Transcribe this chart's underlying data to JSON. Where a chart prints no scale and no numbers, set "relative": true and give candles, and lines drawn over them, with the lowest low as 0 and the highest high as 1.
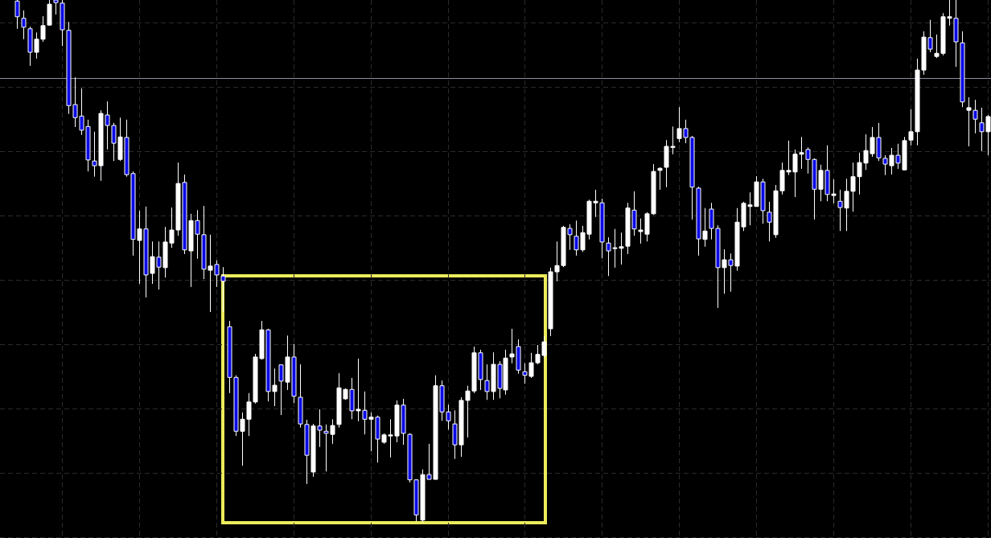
{
  "chart_data": {
    "type": "candlestick",
    "relative": true,
    "grid": true,
    "categories": [
      null,
      null,
      null,
      null,
      null,
      null,
      null,
      null,
      null,
      null,
      null,
      null,
      null,
      null,
      null,
      null,
      null,
      null,
      null,
      null,
      null,
      null,
      null,
      null,
      null,
      null,
      null,
      null,
      null,
      null,
      null,
      null,
      null,
      null,
      null,
      null,
      null,
      null,
      null,
      null,
      null,
      null,
      null,
      null,
      null,
      null,
      null,
      null,
      null,
      null,
      null,
      null,
      null,
      null,
      null,
      null,
      null,
      null,
      null,
      null,
      null,
      null,
      null,
      null,
      null,
      null,
      null,
      null,
      null,
      null,
      null,
      null,
      null,
      null,
      null,
      null,
      null,
      null,
      null,
      null,
      null,
      null,
      null,
      null,
      null,
      null,
      null,
      null,
      null,
      null,
      null,
      null,
      null,
      null,
      null,
      null,
      null,
      null,
      null,
      null,
      null,
      null,
      null,
      null,
      null,
      null,
      null,
      null,
      null,
      null,
      null,
      null,
      null,
      null,
      null,
      null,
      null,
      null,
      null,
      null,
      null,
      null,
      null,
      null,
      null,
      null,
      null,
      null,
      null,
      null,
      null,
      null,
      null,
      null,
      null,
      null,
      null,
      null,
      null,
      null,
      null,
      null,
      null,
      null,
      null,
      null,
      null,
      null,
      null,
      null,
      null,
      null
    ],
    "ohlc": [
      [
        0.998,
        1,
        0.945,
        0.968
      ],
      [
        0.965,
        0.98,
        0.925,
        0.948
      ],
      [
        0.945,
        0.949,
        0.874,
        0.9
      ],
      [
        0.9,
        0.938,
        0.888,
        0.925
      ],
      [
        0.925,
        0.969,
        0.92,
        0.951
      ],
      [
        0.952,
        1,
        0.951,
        0.992
      ],
      [
        1,
        1,
        0.972,
        0.995
      ],
      [
        0.994,
        1,
        0.912,
        0.943
      ],
      [
        0.942,
        0.958,
        0.782,
        0.798
      ],
      [
        0.8,
        0.852,
        0.757,
        0.775
      ],
      [
        0.778,
        0.831,
        0.742,
        0.751
      ],
      [
        0.758,
        0.771,
        0.672,
        0.694
      ],
      [
        0.692,
        0.748,
        0.662,
        0.683
      ],
      [
        0.683,
        0.789,
        0.654,
        0.783
      ],
      [
        0.78,
        0.806,
        0.714,
        0.76
      ],
      [
        0.76,
        0.765,
        0.692,
        0.726
      ],
      [
        0.695,
        0.775,
        0.692,
        0.738
      ],
      [
        0.737,
        0.771,
        0.662,
        0.666
      ],
      [
        0.668,
        0.672,
        0.511,
        0.542
      ],
      [
        0.54,
        0.597,
        0.457,
        0.562
      ],
      [
        0.562,
        0.605,
        0.431,
        0.474
      ],
      [
        0.477,
        0.538,
        0.457,
        0.509
      ],
      [
        0.508,
        0.538,
        0.446,
        0.489
      ],
      [
        0.488,
        0.566,
        0.469,
        0.537
      ],
      [
        0.535,
        0.603,
        0.526,
        0.56
      ],
      [
        0.56,
        0.689,
        0.549,
        0.649
      ],
      [
        0.651,
        0.666,
        0.514,
        0.522
      ],
      [
        0.52,
        0.591,
        0.451,
        0.578
      ],
      [
        0.578,
        0.598,
        0.505,
        0.552
      ],
      [
        0.551,
        0.606,
        0.466,
        0.485
      ],
      [
        0.483,
        0.551,
        0.403,
        0.491
      ],
      [
        0.494,
        0.502,
        0.451,
        0.474
      ],
      [
        0.472,
        0.489,
        0.403,
        0.462
      ],
      [
        0.375,
        0.386,
        0.248,
        0.278
      ],
      [
        0.278,
        0.282,
        0.166,
        0.175
      ],
      [
        0.175,
        0.211,
        0.109,
        0.198
      ],
      [
        0.198,
        0.248,
        0.166,
        0.231
      ],
      [
        0.231,
        0.323,
        0.228,
        0.317
      ],
      [
        0.314,
        0.386,
        0.312,
        0.369
      ],
      [
        0.369,
        0.371,
        0.232,
        0.251
      ],
      [
        0.251,
        0.295,
        0.223,
        0.263
      ],
      [
        0.302,
        0.302,
        0.206,
        0.271
      ],
      [
        0.269,
        0.358,
        0.254,
        0.317
      ],
      [
        0.317,
        0.342,
        0.229,
        0.242
      ],
      [
        0.24,
        0.303,
        0.182,
        0.189
      ],
      [
        0.188,
        0.197,
        0.074,
        0.129
      ],
      [
        0.097,
        0.189,
        0.088,
        0.185
      ],
      [
        0.185,
        0.217,
        0.145,
        0.177
      ],
      [
        0.175,
        0.188,
        0.098,
        0.171
      ],
      [
        0.169,
        0.198,
        0.151,
        0.186
      ],
      [
        0.188,
        0.286,
        0.182,
        0.258
      ],
      [
        0.237,
        0.257,
        0.235,
        0.255
      ],
      [
        0.255,
        0.277,
        0.198,
        0.214
      ],
      [
        0.214,
        0.314,
        0.194,
        0.217
      ],
      [
        0.215,
        0.251,
        0.169,
        0.198
      ],
      [
        0.198,
        0.211,
        0.137,
        0.202
      ],
      [
        0.202,
        0.205,
        0.115,
        0.16
      ],
      [
        0.154,
        0.171,
        0.151,
        0.168
      ],
      [
        0.166,
        0.198,
        0.125,
        0.168
      ],
      [
        0.166,
        0.234,
        0.154,
        0.225
      ],
      [
        0.225,
        0.237,
        0.149,
        0.171
      ],
      [
        0.169,
        0.171,
        0.077,
        0.082
      ],
      [
        0.082,
        0.083,
        0.003,
        0.015
      ],
      [
        0.005,
        0.102,
        0,
        0.092
      ],
      [
        0.092,
        0.151,
        0.083,
        0.083
      ],
      [
        0.083,
        0.282,
        0.083,
        0.262
      ],
      [
        0.262,
        0.272,
        0.195,
        0.212
      ],
      [
        0.212,
        0.226,
        0.178,
        0.195
      ],
      [
        0.189,
        0.215,
        0.122,
        0.149
      ],
      [
        0.149,
        0.24,
        0.126,
        0.234
      ],
      [
        0.234,
        0.262,
        0.163,
        0.252
      ],
      [
        0.252,
        0.337,
        0.248,
        0.325
      ],
      [
        0.325,
        0.331,
        0.254,
        0.274
      ],
      [
        0.272,
        0.303,
        0.235,
        0.251
      ],
      [
        0.251,
        0.326,
        0.235,
        0.303
      ],
      [
        0.303,
        0.309,
        0.238,
        0.257
      ],
      [
        0.254,
        0.331,
        0.245,
        0.315
      ],
      [
        0.317,
        0.371,
        0.305,
        0.323
      ],
      [
        0.337,
        0.351,
        0.285,
        0.292
      ],
      [
        0.289,
        0.305,
        0.266,
        0.282
      ],
      [
        0.28,
        0.325,
        0.277,
        0.306
      ],
      [
        0.306,
        0.34,
        0.303,
        0.322
      ],
      [
        0.32,
        0.357,
        0.315,
        0.346
      ],
      [
        0.371,
        0.488,
        0.357,
        0.48
      ],
      [
        0.48,
        0.538,
        0.462,
        0.492
      ],
      [
        0.492,
        0.568,
        0.489,
        0.565
      ],
      [
        0.563,
        0.571,
        0.522,
        0.551
      ],
      [
        0.548,
        0.578,
        0.511,
        0.522
      ],
      [
        0.522,
        0.568,
        0.518,
        0.555
      ],
      [
        0.552,
        0.618,
        0.542,
        0.615
      ],
      [
        0.612,
        0.637,
        0.585,
        0.615
      ],
      [
        0.612,
        0.62,
        0.506,
        0.537
      ],
      [
        0.535,
        0.546,
        0.472,
        0.52
      ],
      [
        0.525,
        0.562,
        0.488,
        0.526
      ],
      [
        0.525,
        0.555,
        0.494,
        0.528
      ],
      [
        0.529,
        0.612,
        0.514,
        0.602
      ],
      [
        0.598,
        0.634,
        0.549,
        0.562
      ],
      [
        0.557,
        0.582,
        0.534,
        0.56
      ],
      [
        0.552,
        0.594,
        0.538,
        0.591
      ],
      [
        0.591,
        0.686,
        0.589,
        0.672
      ],
      [
        0.674,
        0.68,
        0.637,
        0.678
      ],
      [
        0.68,
        0.732,
        0.642,
        0.72
      ],
      [
        0.718,
        0.758,
        0.705,
        0.72
      ],
      [
        0.735,
        0.795,
        0.728,
        0.754
      ],
      [
        0.754,
        0.771,
        0.726,
        0.737
      ],
      [
        0.737,
        0.74,
        0.58,
        0.642
      ],
      [
        0.64,
        0.643,
        0.511,
        0.543
      ],
      [
        0.542,
        0.602,
        0.528,
        0.558
      ],
      [
        0.6,
        0.612,
        0.542,
        0.563
      ],
      [
        0.563,
        0.569,
        0.411,
        0.488
      ],
      [
        0.488,
        0.523,
        0.438,
        0.503
      ],
      [
        0.503,
        0.515,
        0.442,
        0.492
      ],
      [
        0.491,
        0.602,
        0.482,
        0.575
      ],
      [
        0.566,
        0.614,
        0.558,
        0.611
      ],
      [
        0.605,
        0.632,
        0.569,
        0.608
      ],
      [
        0.605,
        0.663,
        0.605,
        0.652
      ],
      [
        0.652,
        0.658,
        0.572,
        0.597
      ],
      [
        0.594,
        0.614,
        0.538,
        0.575
      ],
      [
        0.551,
        0.646,
        0.545,
        0.635
      ],
      [
        0.635,
        0.689,
        0.628,
        0.674
      ],
      [
        0.671,
        0.731,
        0.665,
        0.674
      ],
      [
        0.671,
        0.714,
        0.623,
        0.705
      ],
      [
        0.705,
        0.738,
        0.677,
        0.708
      ],
      [
        0.714,
        0.718,
        0.668,
        0.695
      ],
      [
        0.695,
        0.697,
        0.58,
        0.638
      ],
      [
        0.638,
        0.685,
        0.615,
        0.674
      ],
      [
        0.674,
        0.722,
        0.615,
        0.628
      ],
      [
        0.626,
        0.657,
        0.611,
        0.629
      ],
      [
        0.615,
        0.637,
        0.558,
        0.603
      ],
      [
        0.602,
        0.658,
        0.558,
        0.634
      ],
      [
        0.634,
        0.689,
        0.595,
        0.662
      ],
      [
        0.662,
        0.708,
        0.628,
        0.689
      ],
      [
        0.688,
        0.743,
        0.675,
        0.712
      ],
      [
        0.706,
        0.757,
        0.7,
        0.737
      ],
      [
        0.737,
        0.765,
        0.692,
        0.698
      ],
      [
        0.697,
        0.703,
        0.665,
        0.686
      ],
      [
        0.683,
        0.717,
        0.666,
        0.703
      ],
      [
        0.703,
        0.725,
        0.677,
        0.688
      ],
      [
        0.675,
        0.738,
        0.674,
        0.731
      ],
      [
        0.732,
        0.791,
        0.722,
        0.748
      ],
      [
        0.748,
        0.888,
        0.722,
        0.866
      ],
      [
        0.866,
        0.94,
        0.857,
        0.929
      ],
      [
        0.928,
        0.962,
        0.9,
        0.906
      ],
      [
        0.892,
        0.934,
        0.889,
        0.898
      ],
      [
        0.898,
        0.975,
        0.894,
        0.968
      ],
      [
        0.965,
        1,
        0.951,
        0.968
      ],
      [
        0.965,
        1,
        0.872,
        0.92
      ],
      [
        0.918,
        0.94,
        0.795,
        0.805
      ],
      [
        0.789,
        0.814,
        0.72,
        0.794
      ],
      [
        0.789,
        0.809,
        0.745,
        0.772
      ],
      [
        0.765,
        0.794,
        0.711,
        0.748
      ],
      [
        0.748,
        0.78,
        0.703,
        0.777
      ]
    ],
    "ref_lines": [
      {
        "axis": "y",
        "value": 0.851,
        "color": "#8c8fa8"
      }
    ]
  }
}
